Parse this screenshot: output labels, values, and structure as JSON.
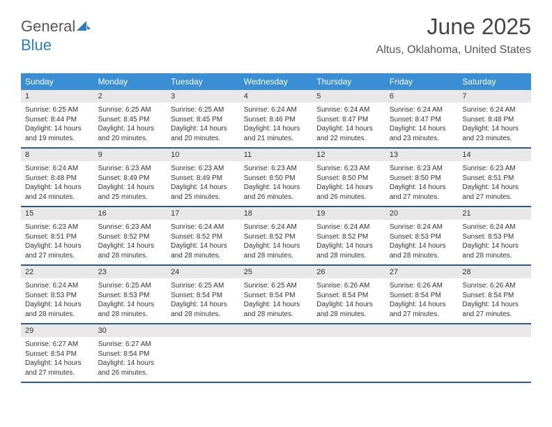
{
  "logo": {
    "text1": "General",
    "text2": "Blue"
  },
  "header": {
    "month": "June 2025",
    "location": "Altus, Oklahoma, United States"
  },
  "colors": {
    "header_bg": "#3a8fd4",
    "header_text": "#ffffff",
    "daynum_bg": "#e8e8e8",
    "week_border": "#2b5a8a",
    "text": "#333333",
    "logo_gray": "#555555",
    "logo_blue": "#2b7bbf"
  },
  "dayNames": [
    "Sunday",
    "Monday",
    "Tuesday",
    "Wednesday",
    "Thursday",
    "Friday",
    "Saturday"
  ],
  "weeks": [
    [
      {
        "n": "1",
        "sr": "6:25 AM",
        "ss": "8:44 PM",
        "dl": "14 hours and 19 minutes."
      },
      {
        "n": "2",
        "sr": "6:25 AM",
        "ss": "8:45 PM",
        "dl": "14 hours and 20 minutes."
      },
      {
        "n": "3",
        "sr": "6:25 AM",
        "ss": "8:45 PM",
        "dl": "14 hours and 20 minutes."
      },
      {
        "n": "4",
        "sr": "6:24 AM",
        "ss": "8:46 PM",
        "dl": "14 hours and 21 minutes."
      },
      {
        "n": "5",
        "sr": "6:24 AM",
        "ss": "8:47 PM",
        "dl": "14 hours and 22 minutes."
      },
      {
        "n": "6",
        "sr": "6:24 AM",
        "ss": "8:47 PM",
        "dl": "14 hours and 23 minutes."
      },
      {
        "n": "7",
        "sr": "6:24 AM",
        "ss": "8:48 PM",
        "dl": "14 hours and 23 minutes."
      }
    ],
    [
      {
        "n": "8",
        "sr": "6:24 AM",
        "ss": "8:48 PM",
        "dl": "14 hours and 24 minutes."
      },
      {
        "n": "9",
        "sr": "6:23 AM",
        "ss": "8:49 PM",
        "dl": "14 hours and 25 minutes."
      },
      {
        "n": "10",
        "sr": "6:23 AM",
        "ss": "8:49 PM",
        "dl": "14 hours and 25 minutes."
      },
      {
        "n": "11",
        "sr": "6:23 AM",
        "ss": "8:50 PM",
        "dl": "14 hours and 26 minutes."
      },
      {
        "n": "12",
        "sr": "6:23 AM",
        "ss": "8:50 PM",
        "dl": "14 hours and 26 minutes."
      },
      {
        "n": "13",
        "sr": "6:23 AM",
        "ss": "8:50 PM",
        "dl": "14 hours and 27 minutes."
      },
      {
        "n": "14",
        "sr": "6:23 AM",
        "ss": "8:51 PM",
        "dl": "14 hours and 27 minutes."
      }
    ],
    [
      {
        "n": "15",
        "sr": "6:23 AM",
        "ss": "8:51 PM",
        "dl": "14 hours and 27 minutes."
      },
      {
        "n": "16",
        "sr": "6:23 AM",
        "ss": "8:52 PM",
        "dl": "14 hours and 28 minutes."
      },
      {
        "n": "17",
        "sr": "6:24 AM",
        "ss": "8:52 PM",
        "dl": "14 hours and 28 minutes."
      },
      {
        "n": "18",
        "sr": "6:24 AM",
        "ss": "8:52 PM",
        "dl": "14 hours and 28 minutes."
      },
      {
        "n": "19",
        "sr": "6:24 AM",
        "ss": "8:52 PM",
        "dl": "14 hours and 28 minutes."
      },
      {
        "n": "20",
        "sr": "6:24 AM",
        "ss": "8:53 PM",
        "dl": "14 hours and 28 minutes."
      },
      {
        "n": "21",
        "sr": "6:24 AM",
        "ss": "8:53 PM",
        "dl": "14 hours and 28 minutes."
      }
    ],
    [
      {
        "n": "22",
        "sr": "6:24 AM",
        "ss": "8:53 PM",
        "dl": "14 hours and 28 minutes."
      },
      {
        "n": "23",
        "sr": "6:25 AM",
        "ss": "8:53 PM",
        "dl": "14 hours and 28 minutes."
      },
      {
        "n": "24",
        "sr": "6:25 AM",
        "ss": "8:54 PM",
        "dl": "14 hours and 28 minutes."
      },
      {
        "n": "25",
        "sr": "6:25 AM",
        "ss": "8:54 PM",
        "dl": "14 hours and 28 minutes."
      },
      {
        "n": "26",
        "sr": "6:26 AM",
        "ss": "8:54 PM",
        "dl": "14 hours and 28 minutes."
      },
      {
        "n": "27",
        "sr": "6:26 AM",
        "ss": "8:54 PM",
        "dl": "14 hours and 27 minutes."
      },
      {
        "n": "28",
        "sr": "6:26 AM",
        "ss": "8:54 PM",
        "dl": "14 hours and 27 minutes."
      }
    ],
    [
      {
        "n": "29",
        "sr": "6:27 AM",
        "ss": "8:54 PM",
        "dl": "14 hours and 27 minutes."
      },
      {
        "n": "30",
        "sr": "6:27 AM",
        "ss": "8:54 PM",
        "dl": "14 hours and 26 minutes."
      },
      null,
      null,
      null,
      null,
      null
    ]
  ],
  "labels": {
    "sunrise": "Sunrise: ",
    "sunset": "Sunset: ",
    "daylight": "Daylight: "
  }
}
